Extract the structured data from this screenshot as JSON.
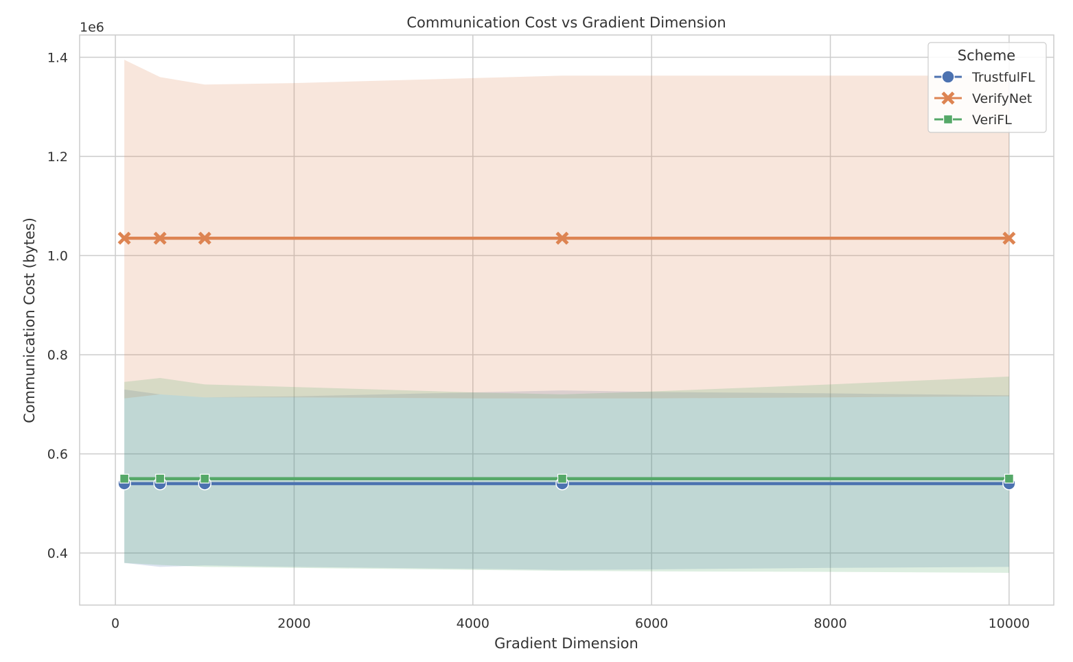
{
  "chart_data": {
    "type": "line",
    "title": "Communication Cost vs Gradient Dimension",
    "xlabel": "Gradient Dimension",
    "ylabel": "Communication Cost (bytes)",
    "y_offset_label": "1e6",
    "xlim": [
      -400,
      10500
    ],
    "ylim": [
      0.295,
      1.445
    ],
    "xticks": [
      0,
      2000,
      4000,
      6000,
      8000,
      10000
    ],
    "xtick_labels": [
      "0",
      "2000",
      "4000",
      "6000",
      "8000",
      "10000"
    ],
    "yticks": [
      0.4,
      0.6,
      0.8,
      1.0,
      1.2,
      1.4
    ],
    "ytick_labels": [
      "0.4",
      "0.6",
      "0.8",
      "1.0",
      "1.2",
      "1.4"
    ],
    "grid": true,
    "legend": {
      "title": "Scheme",
      "placement": "top-right"
    },
    "x": [
      100,
      500,
      1000,
      5000,
      10000
    ],
    "series": [
      {
        "name": "TrustfulFL",
        "color": "#4c72b0",
        "marker": "circle",
        "values": [
          0.54,
          0.54,
          0.54,
          0.54,
          0.54
        ],
        "band_x": [
          100,
          500,
          1000,
          2000,
          4000,
          5000,
          6000,
          8000,
          10000
        ],
        "band_lower": [
          0.38,
          0.372,
          0.375,
          0.372,
          0.368,
          0.366,
          0.367,
          0.37,
          0.372
        ],
        "band_upper": [
          0.73,
          0.72,
          0.714,
          0.716,
          0.724,
          0.728,
          0.725,
          0.722,
          0.718
        ]
      },
      {
        "name": "VerifyNet",
        "color": "#dd8452",
        "marker": "x",
        "values": [
          1.035,
          1.035,
          1.035,
          1.035,
          1.035
        ],
        "band_x": [
          100,
          500,
          1000,
          2000,
          4000,
          5000,
          6000,
          8000,
          10000
        ],
        "band_lower": [
          0.712,
          0.72,
          0.714,
          0.714,
          0.712,
          0.712,
          0.712,
          0.714,
          0.716
        ],
        "band_upper": [
          1.395,
          1.36,
          1.345,
          1.348,
          1.358,
          1.363,
          1.363,
          1.363,
          1.363
        ]
      },
      {
        "name": "VeriFL",
        "color": "#55a868",
        "marker": "square",
        "values": [
          0.55,
          0.55,
          0.55,
          0.55,
          0.55
        ],
        "band_x": [
          100,
          500,
          1000,
          2000,
          4000,
          5000,
          6000,
          8000,
          10000
        ],
        "band_lower": [
          0.38,
          0.376,
          0.372,
          0.37,
          0.366,
          0.364,
          0.363,
          0.362,
          0.36
        ],
        "band_upper": [
          0.745,
          0.753,
          0.74,
          0.735,
          0.724,
          0.72,
          0.726,
          0.74,
          0.756
        ]
      }
    ]
  }
}
